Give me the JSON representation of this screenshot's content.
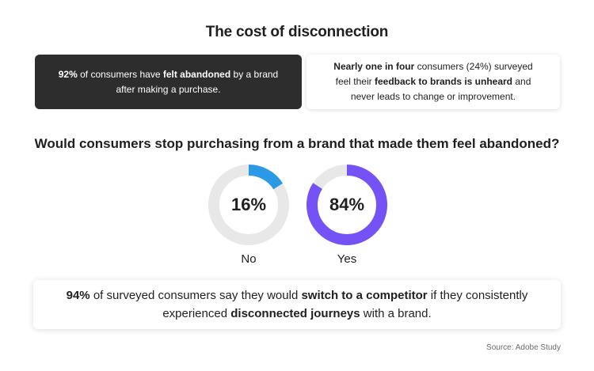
{
  "title": "The cost of disconnection",
  "card_left": {
    "l1": [
      "92%",
      " of consumers have ",
      "felt abandoned",
      " by a brand"
    ],
    "l2": "after making a purchase."
  },
  "card_right": {
    "l1": [
      "Nearly one in four",
      " consumers (24%) surveyed"
    ],
    "l2": [
      "feel their ",
      "feedback to brands is unheard",
      " and"
    ],
    "l3": "never leads to change or improvement."
  },
  "question": "Would consumers stop purchasing from a brand that made them feel abandoned?",
  "chart_data": {
    "type": "pie",
    "categories": [
      "No",
      "Yes"
    ],
    "values": [
      16,
      84
    ],
    "value_labels": [
      "16%",
      "84%"
    ],
    "colors": [
      "#2b9ae6",
      "#7552f5"
    ],
    "track_color": "#e8e8e8"
  },
  "card_bottom": {
    "l1": [
      "94%",
      " of surveyed consumers say they would ",
      "switch to a competitor",
      " if they consistently"
    ],
    "l2": [
      "experienced ",
      "disconnected journeys",
      " with a brand."
    ]
  },
  "source": "Source: Adobe Study"
}
